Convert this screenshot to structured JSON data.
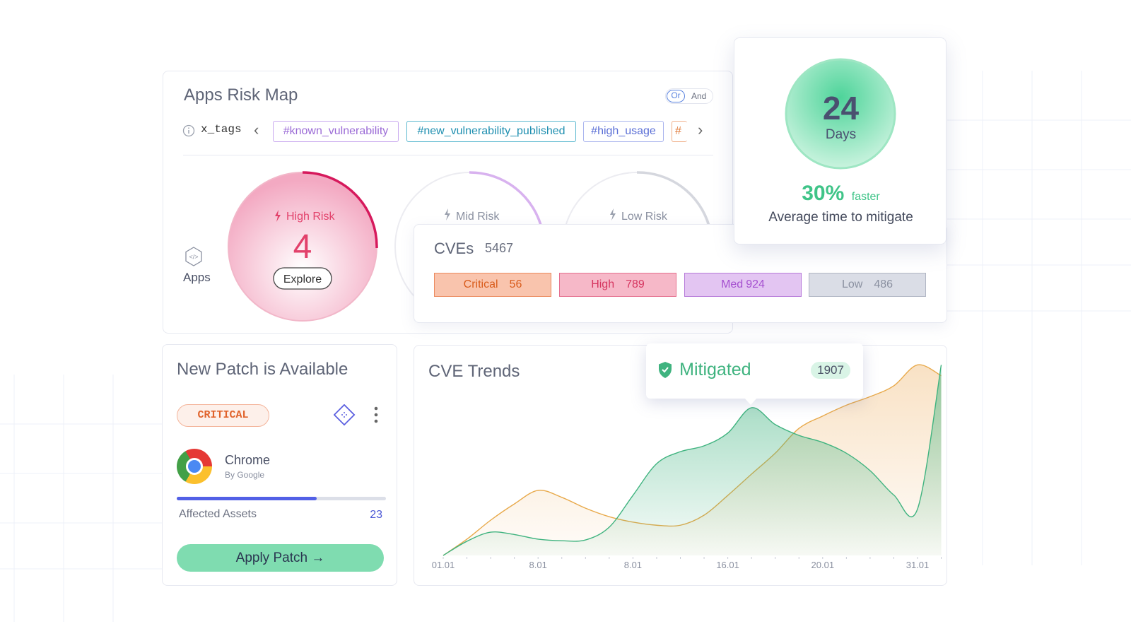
{
  "risk_map": {
    "title": "Apps Risk Map",
    "toggle": [
      "Or",
      "And"
    ],
    "tag_label": "x_tags",
    "tags": [
      "#known_vulnerability",
      "#new_vulnerability_published",
      "#high_usage",
      "#"
    ],
    "apps_label": "Apps",
    "gauges": [
      {
        "label": "High Risk",
        "value": 4,
        "action": "Explore"
      },
      {
        "label": "Mid Risk"
      },
      {
        "label": "Low Risk"
      }
    ]
  },
  "cves": {
    "title": "CVEs",
    "total": 5467,
    "levels": [
      {
        "name": "Critical",
        "count": 56
      },
      {
        "name": "High",
        "count": 789
      },
      {
        "name": "Med",
        "count": 924
      },
      {
        "name": "Low",
        "count": 486
      }
    ]
  },
  "mitigation": {
    "value": 24,
    "unit": "Days",
    "percent": "30%",
    "percent_note": "faster",
    "caption": "Average time to mitigate"
  },
  "patch": {
    "title": "New Patch is Available",
    "severity": "CRITICAL",
    "app": "Chrome",
    "vendor": "By Google",
    "metric": "Affected Assets",
    "metric_value": 23,
    "action": "Apply Patch"
  },
  "chart_data": {
    "type": "line",
    "title": "CVE Trends",
    "categories": [
      "01.01",
      null,
      null,
      null,
      "8.01",
      null,
      null,
      null,
      "8.01",
      null,
      null,
      null,
      "16.01",
      null,
      null,
      null,
      "20.01",
      null,
      null,
      null,
      "31.01",
      null
    ],
    "series": [
      {
        "name": "Mitigated",
        "color": "#3fb37f",
        "values": [
          0,
          183,
          300,
          270,
          210,
          190,
          200,
          365,
          775,
          1185,
          1340,
          1415,
          1580,
          1907,
          1690,
          1550,
          1460,
          1320,
          1095,
          780,
          600,
          2460
        ]
      },
      {
        "color": "#e8a94a",
        "values": [
          0,
          210,
          455,
          665,
          840,
          750,
          610,
          500,
          430,
          390,
          390,
          520,
          775,
          1050,
          1320,
          1640,
          1800,
          1940,
          2050,
          2190,
          2460,
          2320
        ]
      }
    ],
    "tooltip_index": 13,
    "ylim": [
      0,
      2600
    ]
  }
}
